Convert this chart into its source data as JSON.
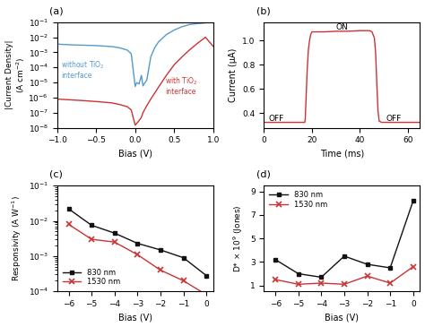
{
  "panel_a": {
    "bias_blue": [
      -1.0,
      -0.9,
      -0.8,
      -0.7,
      -0.6,
      -0.5,
      -0.4,
      -0.3,
      -0.2,
      -0.1,
      -0.05,
      0.0,
      0.02,
      0.05,
      0.08,
      0.1,
      0.15,
      0.2,
      0.25,
      0.3,
      0.4,
      0.5,
      0.6,
      0.7,
      0.8,
      0.9,
      1.0
    ],
    "blue_y": [
      0.0035,
      0.0033,
      0.0031,
      0.003,
      0.0029,
      0.0028,
      0.0026,
      0.0024,
      0.002,
      0.0014,
      0.0008,
      5.5e-06,
      1e-05,
      8e-06,
      3e-05,
      6e-06,
      1.5e-05,
      0.0005,
      0.002,
      0.005,
      0.015,
      0.03,
      0.05,
      0.07,
      0.08,
      0.09,
      0.1
    ],
    "bias_red": [
      -1.0,
      -0.9,
      -0.8,
      -0.7,
      -0.6,
      -0.5,
      -0.4,
      -0.3,
      -0.2,
      -0.1,
      -0.05,
      0.0,
      0.05,
      0.08,
      0.1,
      0.15,
      0.2,
      0.3,
      0.4,
      0.5,
      0.6,
      0.7,
      0.8,
      0.9,
      1.0
    ],
    "red_y": [
      8e-07,
      7.5e-07,
      7e-07,
      6.5e-07,
      6e-07,
      5.5e-07,
      5e-07,
      4.5e-07,
      3.5e-07,
      2.5e-07,
      1.5e-07,
      1.5e-08,
      3e-08,
      5e-08,
      1e-07,
      3e-07,
      8e-07,
      5e-06,
      3e-05,
      0.00015,
      0.0005,
      0.0015,
      0.004,
      0.01,
      0.0025
    ],
    "blue_color": "#5599CC",
    "red_color": "#CC3333",
    "xlabel": "Bias (V)",
    "ylabel": "|Current Density|\n(A cm$^{-2}$)",
    "ylim": [
      1e-08,
      0.1
    ],
    "xlim": [
      -1,
      1
    ],
    "xticks": [
      -1,
      -0.5,
      0,
      0.5,
      1
    ],
    "label_without": "without TiO$_2$\ninterface",
    "label_with": "with TiO$_2$\ninterface",
    "title": "(a)"
  },
  "panel_b": {
    "time": [
      0,
      17,
      17.2,
      17.5,
      18.0,
      18.5,
      19.0,
      19.5,
      20,
      25,
      30,
      35,
      40,
      44,
      45,
      46,
      46.5,
      47.0,
      47.5,
      48.0,
      48.5,
      49,
      55,
      65
    ],
    "current": [
      0.325,
      0.325,
      0.35,
      0.5,
      0.75,
      0.92,
      1.0,
      1.05,
      1.07,
      1.07,
      1.075,
      1.075,
      1.08,
      1.08,
      1.07,
      1.02,
      0.9,
      0.65,
      0.42,
      0.335,
      0.33,
      0.325,
      0.325,
      0.325
    ],
    "color": "#CC3333",
    "xlabel": "Time (ms)",
    "ylabel": "Current (μA)",
    "ylim": [
      0.28,
      1.15
    ],
    "xlim": [
      0,
      65
    ],
    "title": "(b)",
    "label_on": "ON",
    "label_off1": "OFF",
    "label_off2": "OFF",
    "yticks": [
      0.4,
      0.6,
      0.8,
      1.0
    ],
    "xticks": [
      0,
      20,
      40,
      60
    ]
  },
  "panel_c": {
    "bias": [
      -6,
      -5,
      -4,
      -3,
      -2,
      -1,
      0
    ],
    "black_y": [
      0.022,
      0.0075,
      0.0045,
      0.0023,
      0.0015,
      0.0009,
      0.00028
    ],
    "red_y": [
      0.008,
      0.003,
      0.0025,
      0.0011,
      0.0004,
      0.0002,
      8e-05
    ],
    "black_color": "#111111",
    "red_color": "#CC3333",
    "xlabel": "Bias (V)",
    "ylabel": "Responsivity (A W$^{-1}$)",
    "ylim": [
      0.0001,
      0.1
    ],
    "xlim": [
      -6.5,
      0.3
    ],
    "label_830": "830 nm",
    "label_1530": "1530 nm",
    "title": "(c)",
    "xticks": [
      -6,
      -5,
      -4,
      -3,
      -2,
      -1,
      0
    ]
  },
  "panel_d": {
    "bias": [
      -6,
      -5,
      -4,
      -3,
      -2,
      -1,
      0
    ],
    "black_y": [
      3.2,
      2.0,
      1.7,
      3.5,
      2.8,
      2.5,
      8.2
    ],
    "red_y": [
      1.5,
      1.1,
      1.2,
      1.1,
      1.8,
      1.2,
      2.6
    ],
    "black_color": "#111111",
    "red_color": "#CC3333",
    "xlabel": "Bias (V)",
    "ylabel": "D* × 10$^9$ (Jones)",
    "ylim": [
      0.5,
      9.5
    ],
    "xlim": [
      -6.5,
      0.3
    ],
    "label_830": "830 nm",
    "label_1530": "1530 nm",
    "title": "(d)",
    "xticks": [
      -6,
      -5,
      -4,
      -3,
      -2,
      -1,
      0
    ],
    "yticks": [
      1,
      3,
      5,
      7,
      9
    ]
  }
}
